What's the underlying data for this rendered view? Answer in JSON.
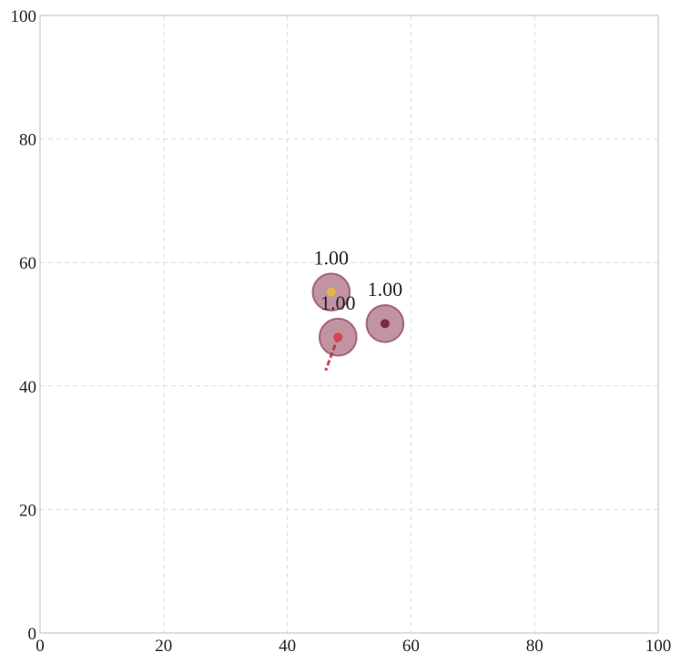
{
  "chart_data": {
    "type": "scatter",
    "xlim": [
      0,
      100
    ],
    "ylim": [
      0,
      100
    ],
    "xticks": [
      0,
      20,
      40,
      60,
      80,
      100
    ],
    "yticks": [
      0,
      20,
      40,
      60,
      80,
      100
    ],
    "grid": true,
    "x": [
      47.1,
      48.2,
      55.8
    ],
    "y": [
      55.2,
      47.9,
      50.1
    ],
    "radius": [
      3,
      3,
      3
    ],
    "colors": [
      "#e8b34a",
      "#d9444c",
      "#7a2b42"
    ],
    "circle_color": "#8c3c55",
    "labels": [
      "1.00",
      "1.00",
      "1.00"
    ],
    "arrow": {
      "x": [
        48.2,
        46.2
      ],
      "y": [
        47.9,
        42.5
      ],
      "color": "#d9444c"
    }
  }
}
